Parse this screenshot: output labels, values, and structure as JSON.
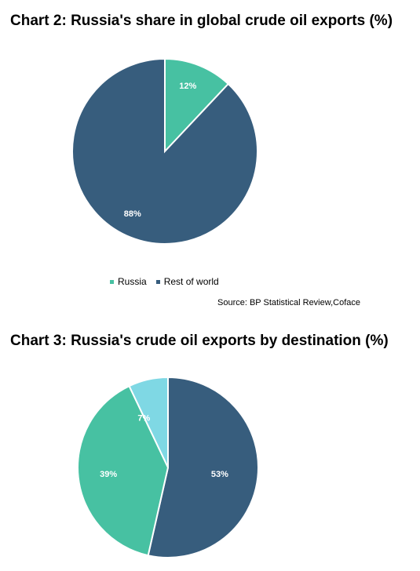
{
  "chart_data": [
    {
      "type": "pie",
      "title": "Chart 2: Russia's share in global crude oil exports (%)",
      "categories": [
        "Russia",
        "Rest of world"
      ],
      "values": [
        12,
        88
      ],
      "labels": [
        "12%",
        "88%"
      ],
      "colors": [
        "#47c1a2",
        "#375d7d"
      ],
      "legend": "bottom",
      "source": "Source: BP Statistical Review,Coface"
    },
    {
      "type": "pie",
      "title": "Chart 3: Russia's crude oil exports by destination (%)",
      "values": [
        53,
        39,
        7
      ],
      "labels": [
        "53%",
        "39%",
        "7%"
      ],
      "colors": [
        "#375d7d",
        "#47c1a2",
        "#7fd8e4"
      ]
    }
  ]
}
